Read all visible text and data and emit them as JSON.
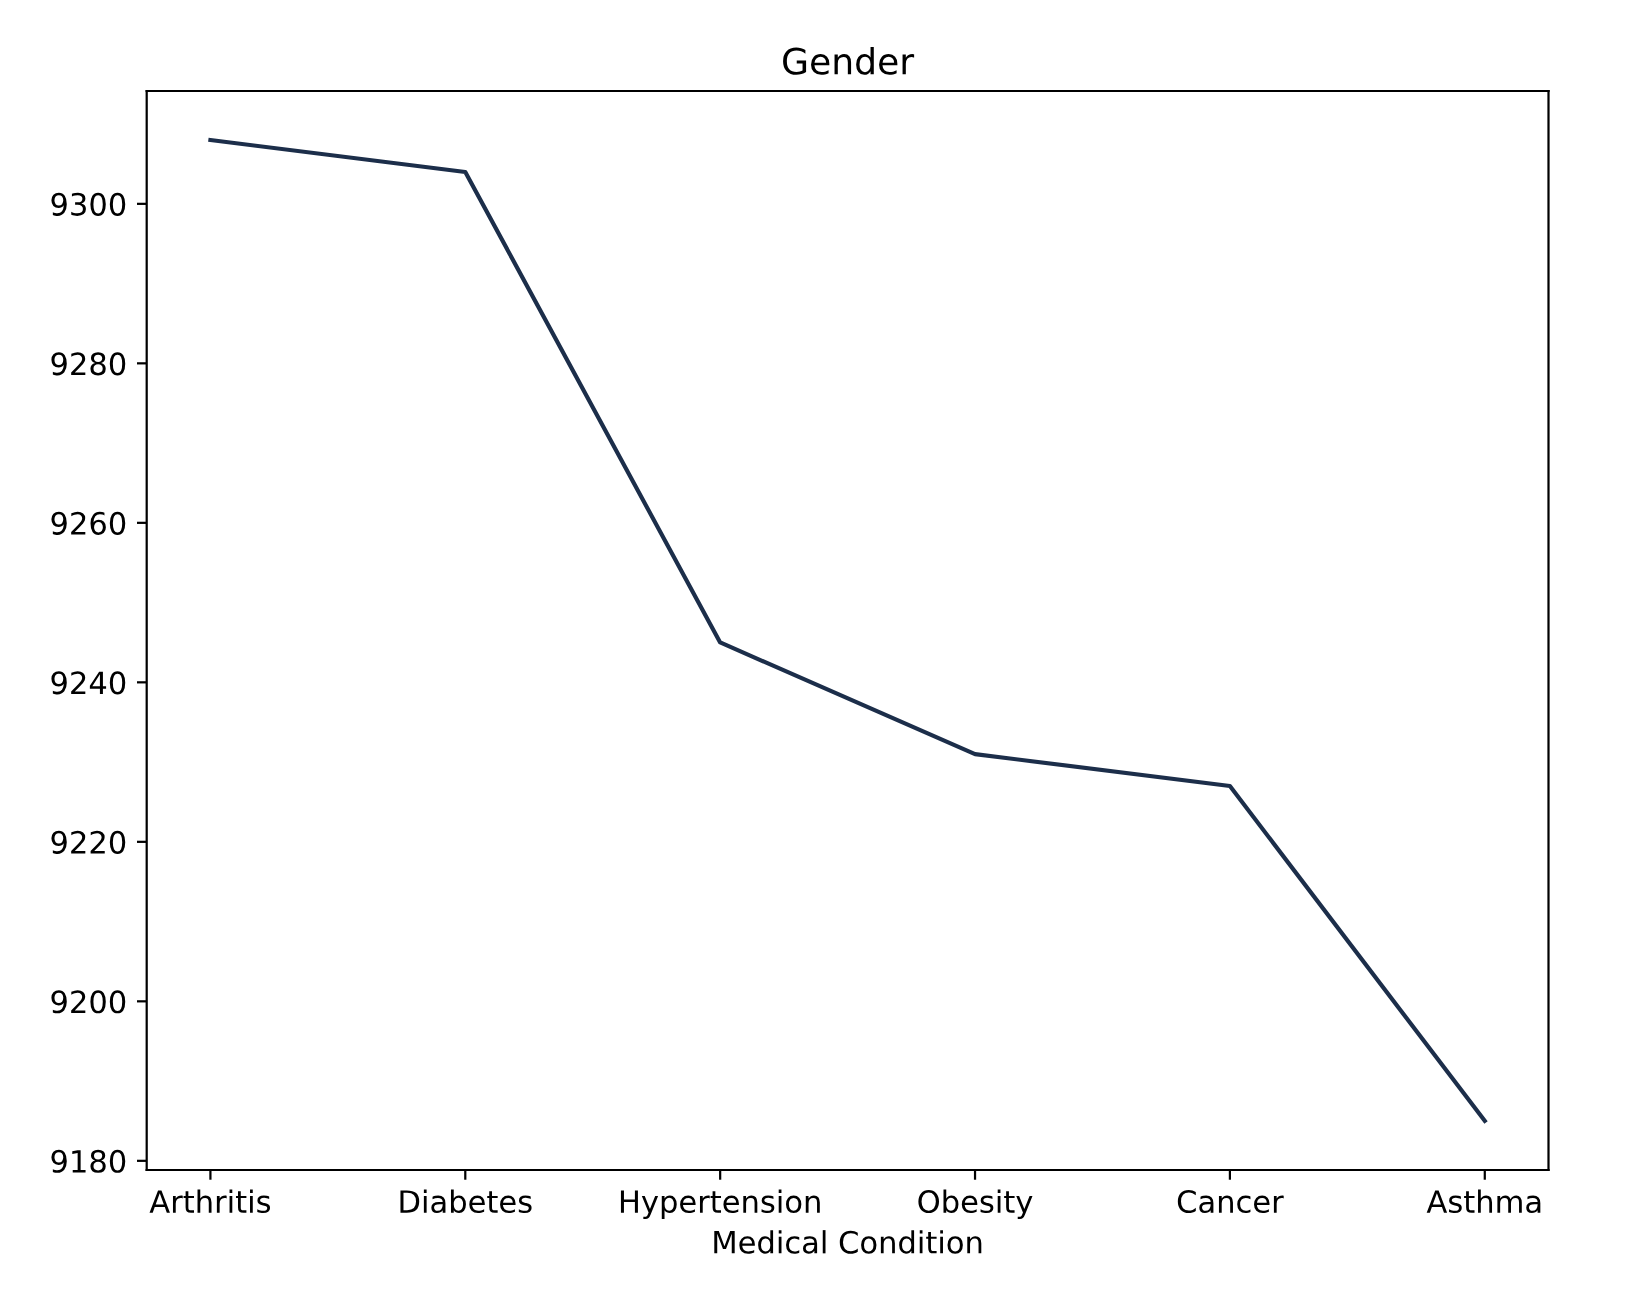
{
  "chart_data": {
    "type": "line",
    "title": "Gender",
    "xlabel": "Medical Condition",
    "categories": [
      "Arthritis",
      "Diabetes",
      "Hypertension",
      "Obesity",
      "Cancer",
      "Asthma"
    ],
    "series": [
      {
        "color": "#1c2e4a",
        "values": [
          9308,
          9304,
          9245,
          9231,
          9227,
          9185
        ]
      }
    ],
    "ylim": [
      9178.85,
      9314.15
    ],
    "yticks": [
      9180,
      9200,
      9220,
      9240,
      9260,
      9280,
      9300
    ],
    "grid": false,
    "legend": false
  }
}
